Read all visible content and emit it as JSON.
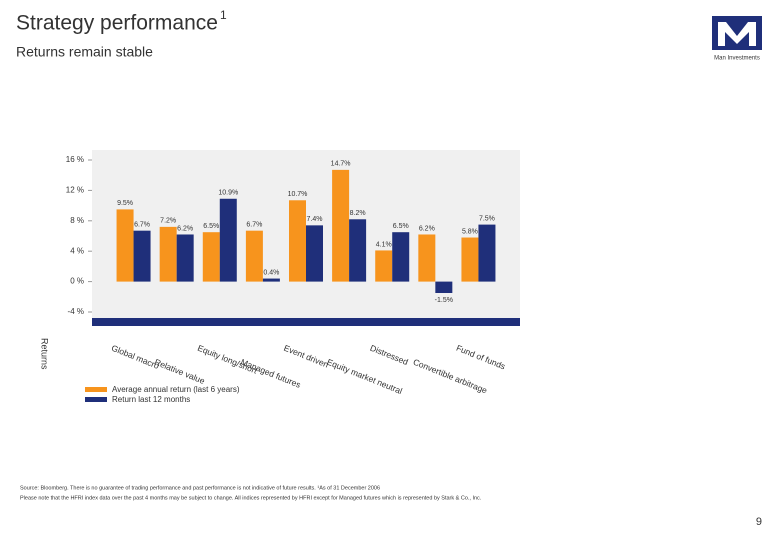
{
  "header": {
    "title": "Strategy performance",
    "title_note": "1",
    "subtitle": "Returns remain stable",
    "logo_text": "Man Investments"
  },
  "chart_data": {
    "type": "bar",
    "y_label": "Returns",
    "categories": [
      "Global macro",
      "Relative value",
      "Equity long/short",
      "Managed futures",
      "Event driven",
      "Equity market neutral",
      "Distressed",
      "Convertible arbitrage",
      "Fund of funds"
    ],
    "series": [
      {
        "name": "Average annual return (last 6 years)",
        "color": "#f7941d",
        "values": [
          9.5,
          7.2,
          6.5,
          6.7,
          10.7,
          14.7,
          4.1,
          6.2,
          5.8
        ],
        "value_labels": [
          "9.5%",
          "7.2%",
          "6.5%",
          "6.7%",
          "10.7%",
          "14.7%",
          "4.1%",
          "6.2%",
          "5.8%"
        ]
      },
      {
        "name": "Return last 12 months",
        "color": "#1f2f7a",
        "values": [
          6.7,
          6.2,
          10.9,
          0.4,
          7.4,
          8.2,
          6.5,
          -1.5,
          7.5
        ],
        "value_labels": [
          "6.7%",
          "6.2%",
          "10.9%",
          "0.4%",
          "7.4%",
          "8.2%",
          "6.5%",
          "-1.5%",
          "7.5%"
        ]
      }
    ],
    "ylim": [
      -4,
      16
    ],
    "yticks": [
      {
        "value": -4,
        "label": "-4 %"
      },
      {
        "value": 0,
        "label": "0 %"
      },
      {
        "value": 4,
        "label": "4 %"
      },
      {
        "value": 8,
        "label": "8 %"
      },
      {
        "value": 12,
        "label": "12 %"
      },
      {
        "value": 16,
        "label": "16 %"
      }
    ]
  },
  "footer": {
    "source": "Source: Bloomberg. There is no guarantee of trading performance and past performance is not indicative of future results. ¹As of 31 December 2006",
    "note": "Please note that the HFRI index data over the past 4 months may be subject to change. All indices represented by HFRI except for Managed futures which is represented by Stark & Co., Inc.",
    "page": "9"
  }
}
